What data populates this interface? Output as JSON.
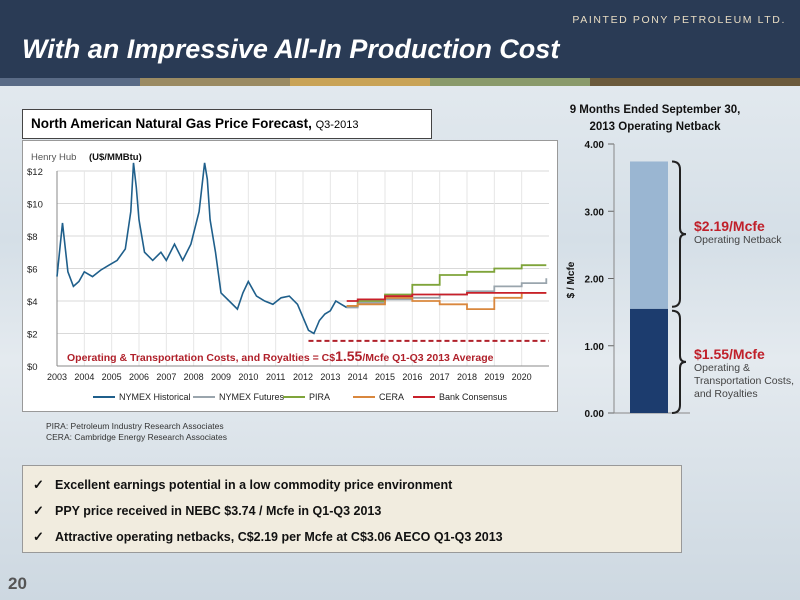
{
  "header": {
    "company": "PAINTED PONY PETROLEUM LTD.",
    "title": "With an Impressive All-In Production Cost",
    "band_colors": [
      "#5a6b86",
      "#9b8b63",
      "#c9a357",
      "#8a9a6b",
      "#6b5a3c"
    ]
  },
  "price_chart": {
    "title_bold": "North American Natural Gas Price Forecast,",
    "title_sub": "Q3-2013",
    "henry_hub": "Henry Hub",
    "units": "(U$/MMBtu)",
    "cost_text_prefix": "Operating & Transportation Costs, and Royalties = C$",
    "cost_value": "1.55",
    "cost_text_suffix": "/Mcfe Q1-Q3 2013 Average",
    "sources": [
      "PIRA: Petroleum Industry Research Associates",
      "CERA: Cambridge Energy Research Associates"
    ]
  },
  "chart_data": [
    {
      "type": "line",
      "title": "North American Natural Gas Price Forecast, Q3-2013",
      "ylabel": "Henry Hub (U$/MMBtu)",
      "ylim": [
        0,
        12
      ],
      "xlim": [
        2003,
        2021
      ],
      "y_ticks": [
        "$0",
        "$2",
        "$4",
        "$6",
        "$8",
        "$10",
        "$12"
      ],
      "x_ticks": [
        "2003",
        "2004",
        "2005",
        "2006",
        "2007",
        "2008",
        "2009",
        "2010",
        "2011",
        "2012",
        "2013",
        "2014",
        "2015",
        "2016",
        "2017",
        "2018",
        "2019",
        "2020"
      ],
      "grid": true,
      "legend_position": "bottom",
      "series": [
        {
          "name": "NYMEX Historical",
          "color": "#1f5f8b",
          "x": [
            2003,
            2003.2,
            2003.4,
            2003.6,
            2003.8,
            2004,
            2004.3,
            2004.6,
            2004.9,
            2005.2,
            2005.5,
            2005.7,
            2005.8,
            2005.9,
            2006,
            2006.2,
            2006.5,
            2006.8,
            2007,
            2007.3,
            2007.6,
            2007.9,
            2008.2,
            2008.4,
            2008.5,
            2008.6,
            2008.8,
            2009,
            2009.3,
            2009.6,
            2009.8,
            2010,
            2010.3,
            2010.6,
            2010.9,
            2011.2,
            2011.5,
            2011.8,
            2012,
            2012.2,
            2012.4,
            2012.6,
            2012.8,
            2013,
            2013.2,
            2013.4,
            2013.6
          ],
          "y": [
            5.5,
            8.8,
            5.8,
            4.9,
            5.2,
            5.8,
            5.5,
            5.9,
            6.2,
            6.5,
            7.2,
            9.5,
            12.5,
            11.0,
            9.0,
            7.0,
            6.5,
            7.0,
            6.5,
            7.5,
            6.5,
            7.5,
            9.5,
            12.5,
            11.5,
            9.0,
            7.0,
            4.5,
            4.0,
            3.5,
            4.5,
            5.2,
            4.3,
            4.0,
            3.8,
            4.2,
            4.3,
            3.8,
            3.0,
            2.2,
            2.0,
            2.8,
            3.2,
            3.4,
            4.0,
            3.8,
            3.6
          ]
        },
        {
          "name": "NYMEX Futures",
          "color": "#9aa5ad",
          "x": [
            2013.6,
            2014,
            2015,
            2016,
            2017,
            2018,
            2019,
            2020,
            2020.9
          ],
          "y": [
            3.6,
            3.9,
            4.1,
            4.2,
            4.4,
            4.6,
            4.9,
            5.1,
            5.4
          ]
        },
        {
          "name": "PIRA",
          "color": "#7fa43a",
          "x": [
            2013.6,
            2014,
            2015,
            2016,
            2017,
            2018,
            2019,
            2020,
            2020.9
          ],
          "y": [
            3.7,
            4.0,
            4.4,
            5.0,
            5.6,
            5.8,
            6.0,
            6.2,
            6.2
          ]
        },
        {
          "name": "CERA",
          "color": "#d9873d",
          "x": [
            2013.6,
            2014,
            2015,
            2016,
            2017,
            2018,
            2019,
            2020,
            2020.9
          ],
          "y": [
            3.7,
            3.8,
            4.2,
            4.0,
            3.8,
            3.5,
            4.2,
            4.5,
            4.5
          ]
        },
        {
          "name": "Bank Consensus",
          "color": "#c8202a",
          "x": [
            2013.6,
            2014,
            2015,
            2016,
            2017,
            2018,
            2019,
            2020,
            2020.9
          ],
          "y": [
            4.0,
            4.1,
            4.3,
            4.4,
            4.4,
            4.5,
            4.5,
            4.5,
            4.5
          ]
        }
      ],
      "annotation_line_y": 1.55
    },
    {
      "type": "bar",
      "title": "9 Months Ended September 30, 2013 Operating Netback",
      "ylabel": "$ / Mcfe",
      "ylim": [
        0,
        4
      ],
      "y_ticks": [
        "0.00",
        "1.00",
        "2.00",
        "3.00",
        "4.00"
      ],
      "stacked": true,
      "series": [
        {
          "name": "Operating & Transportation Costs, and Royalties",
          "value": 1.55,
          "color": "#1c3c6e"
        },
        {
          "name": "Operating Netback",
          "value": 2.19,
          "color": "#9ab6d2"
        }
      ]
    }
  ],
  "netback": {
    "title_line1": "9 Months Ended September 30,",
    "title_line2": "2013 Operating Netback",
    "axis_label": "$ / Mcfe",
    "upper_value": "$2.19/Mcfe",
    "upper_label": "Operating Netback",
    "lower_value": "$1.55/Mcfe",
    "lower_label_lines": [
      "Operating &",
      "Transportation Costs,",
      "and Royalties"
    ]
  },
  "bullets": [
    "Excellent earnings potential in a low commodity price environment",
    "PPY price received in NEBC $3.74 / Mcfe in Q1-Q3 2013",
    "Attractive operating netbacks, C$2.19 per Mcfe at C$3.06 AECO Q1-Q3 2013"
  ],
  "check_glyph": "✓",
  "page_number": "20"
}
